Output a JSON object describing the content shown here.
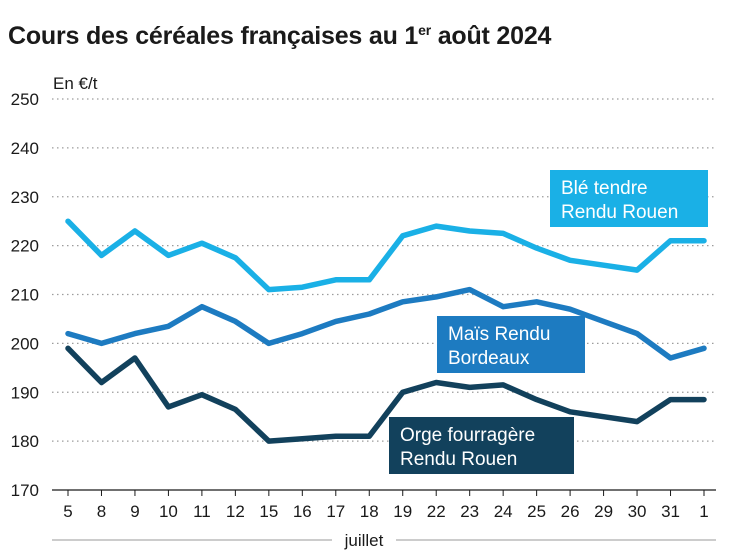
{
  "title_text": "Cours des céréales françaises au 1",
  "title_sup": "er",
  "title_tail": " août 2024",
  "chart_data": {
    "type": "line",
    "title": "Cours des céréales françaises au 1er août 2024",
    "ylabel": "En €/t",
    "xlabel": "juillet",
    "ylim": [
      170,
      250
    ],
    "yticks": [
      170,
      180,
      190,
      200,
      210,
      220,
      230,
      240,
      250
    ],
    "grid": true,
    "categories": [
      "5",
      "8",
      "9",
      "10",
      "11",
      "12",
      "15",
      "16",
      "17",
      "18",
      "19",
      "22",
      "23",
      "24",
      "25",
      "26",
      "29",
      "30",
      "31",
      "1"
    ],
    "series": [
      {
        "name": "Blé tendre Rendu Rouen",
        "color": "#1ab0e6",
        "values": [
          225,
          218,
          223,
          218,
          220.5,
          217.5,
          211,
          211.5,
          213,
          213,
          222,
          224,
          223,
          222.5,
          219.5,
          217,
          216,
          215,
          221,
          221
        ]
      },
      {
        "name": "Maïs Rendu Bordeaux",
        "color": "#1d7bc1",
        "values": [
          202,
          200,
          202,
          203.5,
          207.5,
          204.5,
          200,
          202,
          204.5,
          206,
          208.5,
          209.5,
          211,
          207.5,
          208.5,
          207,
          204.5,
          202,
          197,
          199
        ]
      },
      {
        "name": "Orge fourragère Rendu Rouen",
        "color": "#12415c",
        "values": [
          199,
          192,
          197,
          187,
          189.5,
          186.5,
          180,
          180.5,
          181,
          181,
          190,
          192,
          191,
          191.5,
          188.5,
          186,
          185,
          184,
          188.5,
          188.5
        ]
      }
    ],
    "labels": [
      {
        "series": 0,
        "lines": [
          "Blé tendre",
          "Rendu Rouen"
        ]
      },
      {
        "series": 1,
        "lines": [
          "Maïs Rendu",
          "Bordeaux"
        ]
      },
      {
        "series": 2,
        "lines": [
          "Orge fourragère",
          "Rendu Rouen"
        ]
      }
    ]
  }
}
